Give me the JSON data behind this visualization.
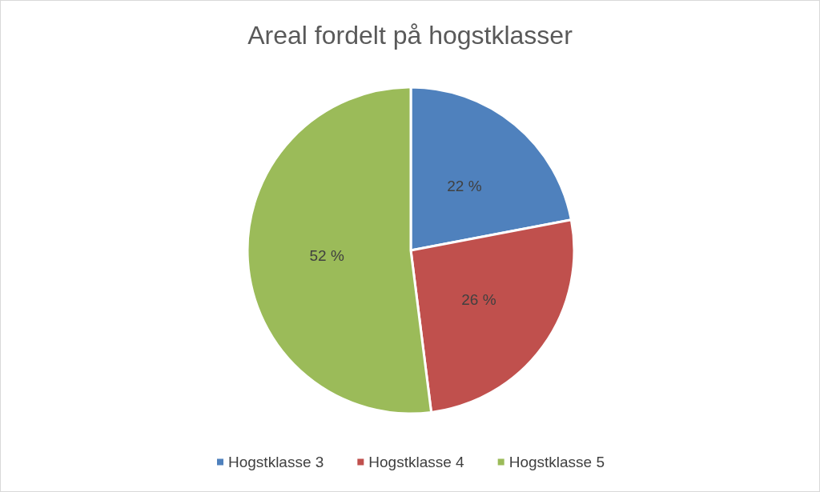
{
  "chart_data": {
    "type": "pie",
    "title": "Areal fordelt på hogstklasser",
    "categories": [
      "Hogstklasse 3",
      "Hogstklasse 4",
      "Hogstklasse 5"
    ],
    "values": [
      22,
      26,
      52
    ],
    "colors": [
      "#4f81bd",
      "#c0504d",
      "#9bbb59"
    ],
    "value_labels": [
      "22 %",
      "26 %",
      "52 %"
    ],
    "legend": "bottom"
  }
}
